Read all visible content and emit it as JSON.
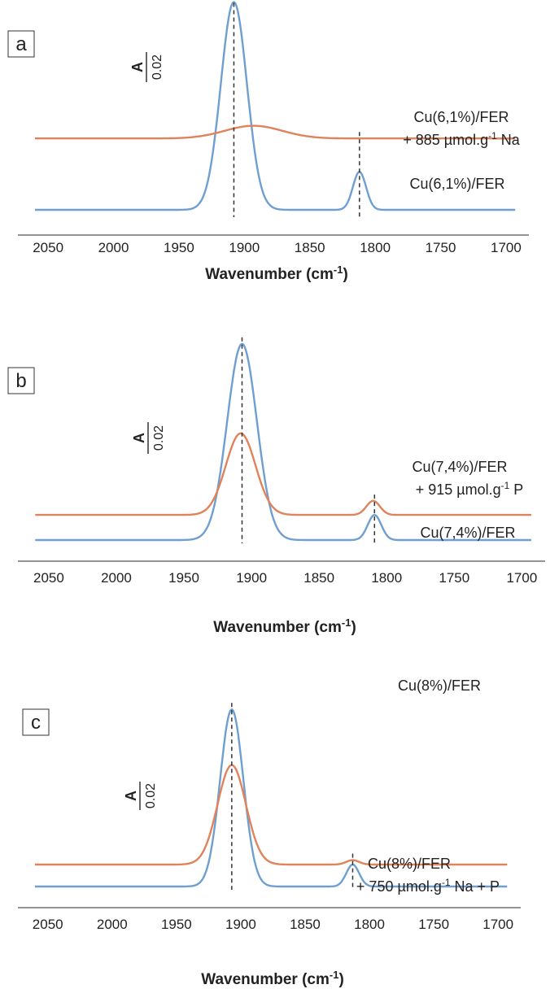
{
  "colors": {
    "reference": "#6f9fd0",
    "treated": "#e0825a",
    "axis": "#555555",
    "guide": "#333333"
  },
  "chart_data": [
    {
      "panel": "a",
      "type": "line",
      "xlabel": "Wavenumber (cm",
      "xlabel_sup": "-1",
      "xlabel_end": ")",
      "xticks": [
        2050,
        2000,
        1950,
        1900,
        1850,
        1800,
        1750,
        1700
      ],
      "xlim": [
        2065,
        1690
      ],
      "x_reversed": true,
      "scale_bar": {
        "label_top": "A",
        "label_bottom": "0.02",
        "value": 0.02
      },
      "reference_lines_x": [
        1908,
        1812
      ],
      "series": [
        {
          "name": "Cu(6,1%)/FER",
          "color_key": "reference",
          "baseline": 0.0,
          "offset": 0.0,
          "peaks": [
            {
              "x": 1908,
              "height": 0.131,
              "sigma": 10
            },
            {
              "x": 1812,
              "height": 0.024,
              "sigma": 5
            }
          ]
        },
        {
          "name": "Cu(6,1%)/FER",
          "name_line2_pre": "+ 885 µmol.g",
          "name_line2_sup": "-1",
          "name_line2_post": " Na",
          "color_key": "treated",
          "baseline": 0.0,
          "offset": 0.045,
          "peaks": [
            {
              "x": 1893,
              "height": 0.008,
              "sigma": 22
            }
          ]
        }
      ]
    },
    {
      "panel": "b",
      "type": "line",
      "xlabel": "Wavenumber (cm",
      "xlabel_sup": "-1",
      "xlabel_end": ")",
      "xticks": [
        2050,
        2000,
        1950,
        1900,
        1850,
        1800,
        1750,
        1700
      ],
      "xlim": [
        2065,
        1690
      ],
      "x_reversed": true,
      "scale_bar": {
        "label_top": "A",
        "label_bottom": "0.02",
        "value": 0.02
      },
      "reference_lines_x": [
        1907,
        1809
      ],
      "series": [
        {
          "name": "Cu(7,4%)/FER",
          "color_key": "reference",
          "baseline": 0.0,
          "offset": 0.0,
          "peaks": [
            {
              "x": 1907,
              "height": 0.125,
              "sigma": 11
            },
            {
              "x": 1809,
              "height": 0.016,
              "sigma": 5
            }
          ]
        },
        {
          "name": "Cu(7,4%)/FER",
          "name_line2_pre": "+ 915 µmol.g",
          "name_line2_sup": "-1",
          "name_line2_post": " P",
          "color_key": "treated",
          "baseline": 0.0,
          "offset": 0.016,
          "peaks": [
            {
              "x": 1908,
              "height": 0.052,
              "sigma": 11
            },
            {
              "x": 1810,
              "height": 0.009,
              "sigma": 5
            }
          ]
        }
      ]
    },
    {
      "panel": "c",
      "type": "line",
      "xlabel": "Wavenumber (cm",
      "xlabel_sup": "-1",
      "xlabel_end": ")",
      "xticks": [
        2050,
        2000,
        1950,
        1900,
        1850,
        1800,
        1750,
        1700
      ],
      "xlim": [
        2065,
        1690
      ],
      "x_reversed": true,
      "scale_bar": {
        "label_top": "A",
        "label_bottom": "0.02",
        "value": 0.02
      },
      "reference_lines_x": [
        1907,
        1813
      ],
      "series": [
        {
          "name": "Cu(8%)/FER",
          "color_key": "reference",
          "baseline": 0.0,
          "offset": 0.0,
          "peaks": [
            {
              "x": 1907,
              "height": 0.121,
              "sigma": 9
            },
            {
              "x": 1813,
              "height": 0.015,
              "sigma": 5
            }
          ]
        },
        {
          "name": "Cu(8%)/FER",
          "name_line2_pre": "+ 750 µmol.g",
          "name_line2_sup": "-1",
          "name_line2_post": " Na + P",
          "color_key": "treated",
          "baseline": 0.0,
          "offset": 0.015,
          "peaks": [
            {
              "x": 1907,
              "height": 0.068,
              "sigma": 11
            },
            {
              "x": 1813,
              "height": 0.003,
              "sigma": 5
            }
          ]
        }
      ]
    }
  ]
}
